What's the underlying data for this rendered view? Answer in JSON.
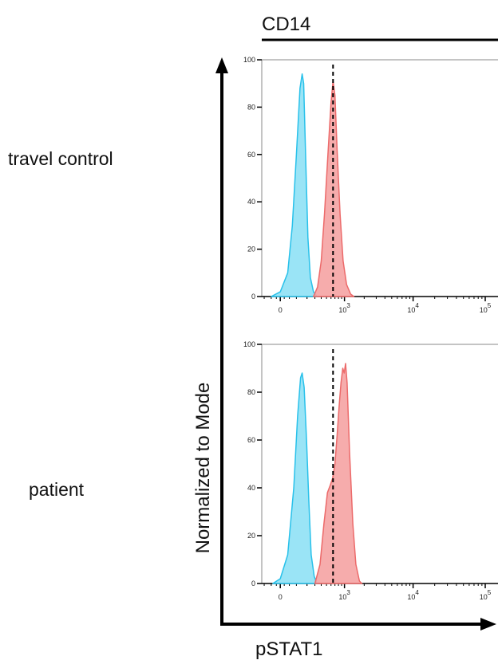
{
  "figure": {
    "column_header": "CD14",
    "x_axis_label": "pSTAT1",
    "y_axis_label": "Normalized to Mode"
  },
  "colors": {
    "unstimulated_fill": "#8fe1f5",
    "unstimulated_line": "#29c1ea",
    "stimulated_fill": "#f5a3a3",
    "stimulated_line": "#ec6a6a",
    "marker_line": "#000000"
  },
  "chart_data": [
    {
      "type": "area",
      "row_label": "travel control",
      "x_scale": "biexponential",
      "x_ticks": [
        {
          "value": 0,
          "label": "0"
        },
        {
          "value": 1000,
          "base": "10",
          "exp": "3"
        },
        {
          "value": 10000,
          "base": "10",
          "exp": "4"
        },
        {
          "value": 100000,
          "base": "10",
          "exp": "5"
        }
      ],
      "y_ticks": [
        0,
        20,
        40,
        60,
        80,
        100
      ],
      "ylim": [
        0,
        100
      ],
      "marker_x": 650,
      "series": [
        {
          "key": "unstimulated",
          "points": [
            [
              -50,
              0
            ],
            [
              0,
              2
            ],
            [
              40,
              10
            ],
            [
              70,
              30
            ],
            [
              100,
              60
            ],
            [
              130,
              88
            ],
            [
              150,
              94
            ],
            [
              165,
              90
            ],
            [
              185,
              60
            ],
            [
              210,
              25
            ],
            [
              240,
              8
            ],
            [
              280,
              2
            ],
            [
              330,
              0
            ]
          ]
        },
        {
          "key": "stimulated",
          "points": [
            [
              280,
              0
            ],
            [
              340,
              4
            ],
            [
              400,
              15
            ],
            [
              460,
              35
            ],
            [
              530,
              60
            ],
            [
              600,
              82
            ],
            [
              650,
              91
            ],
            [
              700,
              85
            ],
            [
              760,
              62
            ],
            [
              850,
              35
            ],
            [
              950,
              15
            ],
            [
              1080,
              5
            ],
            [
              1250,
              1
            ],
            [
              1400,
              0
            ]
          ]
        }
      ]
    },
    {
      "type": "area",
      "row_label": "patient",
      "x_scale": "biexponential",
      "x_ticks": [
        {
          "value": 0,
          "label": "0"
        },
        {
          "value": 1000,
          "base": "10",
          "exp": "3"
        },
        {
          "value": 10000,
          "base": "10",
          "exp": "4"
        },
        {
          "value": 100000,
          "base": "10",
          "exp": "5"
        }
      ],
      "y_ticks": [
        0,
        20,
        40,
        60,
        80,
        100
      ],
      "ylim": [
        0,
        100
      ],
      "marker_x": 650,
      "series": [
        {
          "key": "unstimulated",
          "points": [
            [
              -40,
              0
            ],
            [
              0,
              2
            ],
            [
              40,
              12
            ],
            [
              80,
              40
            ],
            [
              110,
              70
            ],
            [
              135,
              86
            ],
            [
              150,
              88
            ],
            [
              170,
              82
            ],
            [
              195,
              60
            ],
            [
              220,
              35
            ],
            [
              250,
              12
            ],
            [
              290,
              3
            ],
            [
              330,
              0
            ]
          ]
        },
        {
          "key": "stimulated",
          "points": [
            [
              300,
              0
            ],
            [
              380,
              8
            ],
            [
              450,
              25
            ],
            [
              520,
              38
            ],
            [
              580,
              41
            ],
            [
              640,
              44
            ],
            [
              700,
              50
            ],
            [
              760,
              62
            ],
            [
              820,
              74
            ],
            [
              880,
              84
            ],
            [
              940,
              90
            ],
            [
              990,
              88
            ],
            [
              1040,
              92
            ],
            [
              1100,
              84
            ],
            [
              1200,
              55
            ],
            [
              1350,
              25
            ],
            [
              1500,
              8
            ],
            [
              1700,
              1
            ],
            [
              1850,
              0
            ]
          ]
        }
      ]
    }
  ]
}
